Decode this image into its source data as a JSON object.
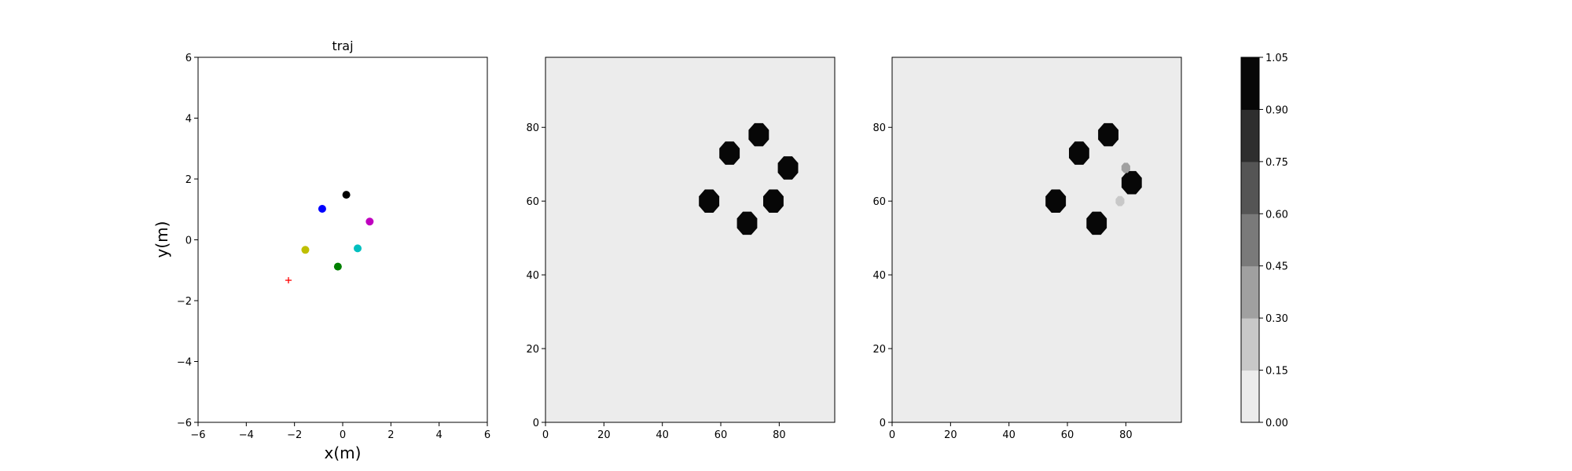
{
  "chart_data": [
    {
      "type": "scatter",
      "title": "traj",
      "xlabel": "x(m)",
      "ylabel": "y(m)",
      "xlim": [
        -6,
        6
      ],
      "ylim": [
        -6,
        6
      ],
      "xticks": [
        "−6",
        "−4",
        "−2",
        "0",
        "2",
        "4",
        "6"
      ],
      "yticks": [
        "−6",
        "−4",
        "−2",
        "0",
        "2",
        "4",
        "6"
      ],
      "points": [
        {
          "x": 0.15,
          "y": 1.48,
          "color": "#000000",
          "marker": "circle"
        },
        {
          "x": -0.85,
          "y": 1.02,
          "color": "#0000ff",
          "marker": "circle"
        },
        {
          "x": 1.12,
          "y": 0.6,
          "color": "#bf00bf",
          "marker": "circle"
        },
        {
          "x": 0.62,
          "y": -0.28,
          "color": "#00bfbf",
          "marker": "circle"
        },
        {
          "x": -1.55,
          "y": -0.33,
          "color": "#bfbf00",
          "marker": "circle"
        },
        {
          "x": -0.2,
          "y": -0.88,
          "color": "#008000",
          "marker": "circle"
        },
        {
          "x": -2.25,
          "y": -1.33,
          "color": "#ff0000",
          "marker": "plus"
        }
      ]
    },
    {
      "type": "heatmap",
      "xlim": [
        0,
        99
      ],
      "ylim": [
        0,
        99
      ],
      "xticks": [
        "0",
        "20",
        "40",
        "60",
        "80"
      ],
      "yticks": [
        "0",
        "20",
        "40",
        "60",
        "80"
      ],
      "background_level": 0.05,
      "blobs": [
        {
          "x": 73,
          "y": 78,
          "value": 1.0
        },
        {
          "x": 63,
          "y": 73,
          "value": 1.0
        },
        {
          "x": 83,
          "y": 69,
          "value": 1.0
        },
        {
          "x": 56,
          "y": 60,
          "value": 1.0
        },
        {
          "x": 78,
          "y": 60,
          "value": 1.0
        },
        {
          "x": 69,
          "y": 54,
          "value": 1.0
        }
      ]
    },
    {
      "type": "heatmap",
      "xlim": [
        0,
        99
      ],
      "ylim": [
        0,
        99
      ],
      "xticks": [
        "0",
        "20",
        "40",
        "60",
        "80"
      ],
      "yticks": [
        "0",
        "20",
        "40",
        "60",
        "80"
      ],
      "background_level": 0.05,
      "blobs": [
        {
          "x": 74,
          "y": 78,
          "value": 1.0
        },
        {
          "x": 64,
          "y": 73,
          "value": 1.0
        },
        {
          "x": 56,
          "y": 60,
          "value": 1.0
        },
        {
          "x": 70,
          "y": 54,
          "value": 1.0
        },
        {
          "x": 82,
          "y": 65,
          "value": 1.0
        },
        {
          "x": 80,
          "y": 69,
          "value": 0.35
        },
        {
          "x": 78,
          "y": 60,
          "value": 0.25
        }
      ]
    }
  ],
  "colorbar": {
    "levels": [
      0.0,
      0.15,
      0.3,
      0.45,
      0.6,
      0.75,
      0.9,
      1.05
    ],
    "tick_labels": [
      "0.00",
      "0.15",
      "0.30",
      "0.45",
      "0.60",
      "0.75",
      "0.90",
      "1.05"
    ],
    "colors": [
      "#ececec",
      "#c8c8c8",
      "#a0a0a0",
      "#7a7a7a",
      "#555555",
      "#2e2e2e",
      "#070707"
    ]
  }
}
